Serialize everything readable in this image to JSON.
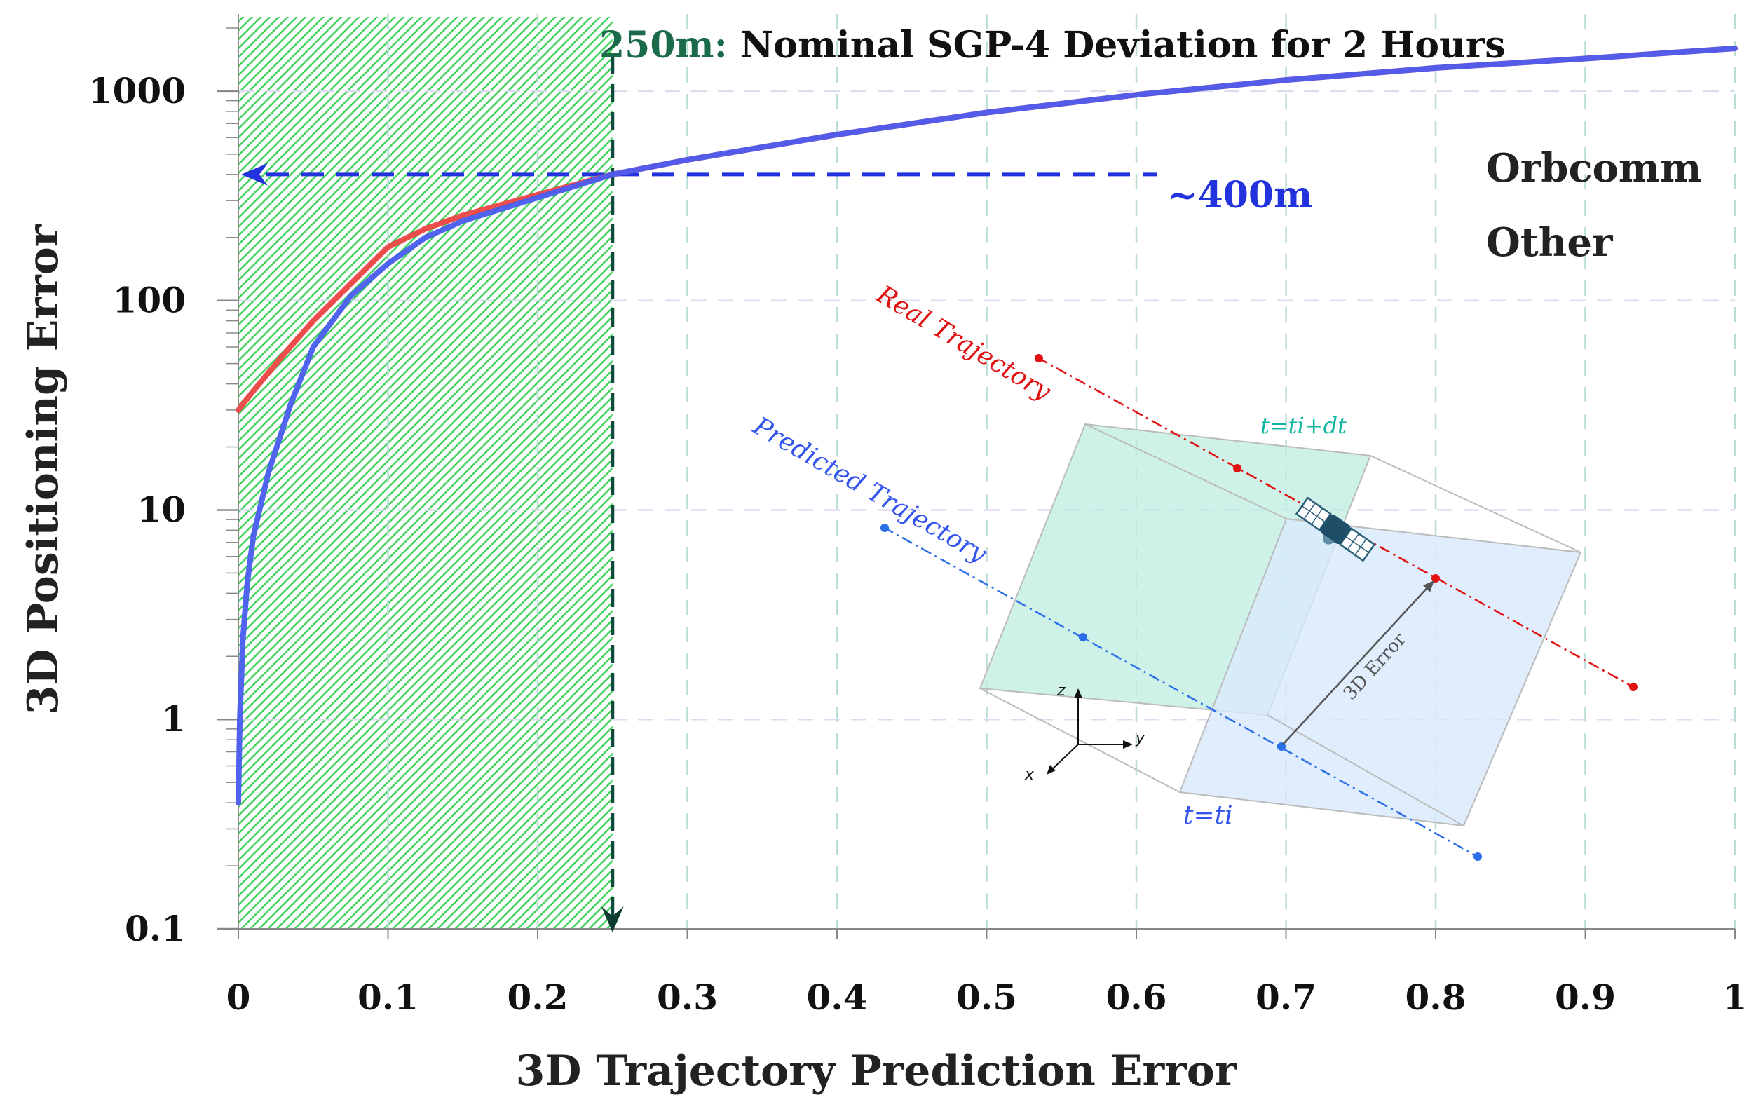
{
  "chart_data": {
    "type": "line",
    "xlabel": "3D Trajectory Prediction Error",
    "ylabel": "3D Positioning Error",
    "xlim": [
      0,
      1
    ],
    "ylim": [
      0.1,
      2000
    ],
    "yscale": "log",
    "x_ticks": [
      "0",
      "0.1",
      "0.2",
      "0.3",
      "0.4",
      "0.5",
      "0.6",
      "0.7",
      "0.8",
      "0.9",
      "1"
    ],
    "y_ticks": [
      "0.1",
      "1",
      "10",
      "100",
      "1000"
    ],
    "grid": "dashed",
    "legend_position": "top-right",
    "series": [
      {
        "name": "Orbcomm",
        "color": "#e02020",
        "x": [
          0,
          0.01,
          0.03,
          0.05,
          0.075,
          0.1,
          0.125,
          0.15,
          0.2,
          0.25,
          0.3,
          0.4,
          0.5,
          0.6,
          0.7,
          0.8,
          0.9,
          1.0
        ],
        "y": [
          30,
          37,
          55,
          80,
          120,
          180,
          220,
          255,
          320,
          400,
          470,
          620,
          790,
          960,
          1130,
          1290,
          1430,
          1600
        ]
      },
      {
        "name": "Other",
        "color": "#2a2ab8",
        "x": [
          0,
          0.001,
          0.003,
          0.006,
          0.01,
          0.02,
          0.035,
          0.05,
          0.075,
          0.1,
          0.125,
          0.15,
          0.2,
          0.25,
          0.3,
          0.4,
          0.5,
          0.6,
          0.7,
          0.8,
          0.9,
          1.0
        ],
        "y": [
          0.4,
          1.0,
          2.4,
          4.5,
          7.5,
          15,
          32,
          60,
          105,
          150,
          200,
          240,
          310,
          400,
          470,
          620,
          790,
          960,
          1130,
          1290,
          1430,
          1600
        ]
      }
    ],
    "threshold": {
      "x": 0.25,
      "label_value": "250m:",
      "label_text": "Nominal SGP-4 Deviation for 2 Hours"
    },
    "marker": {
      "y": 400,
      "label": "~400m"
    }
  },
  "inset": {
    "real_label": "Real Trajectory",
    "predicted_label": "Predicted Trajectory",
    "t_later_label": "t=ti+dt",
    "t_now_label": "t=ti",
    "error_label": "3D Error",
    "axes": [
      "z",
      "y",
      "x"
    ]
  },
  "colors": {
    "green_region": "#22cc44",
    "dashed_threshold": "#0f4a3a",
    "marker_blue": "#2233dd"
  }
}
